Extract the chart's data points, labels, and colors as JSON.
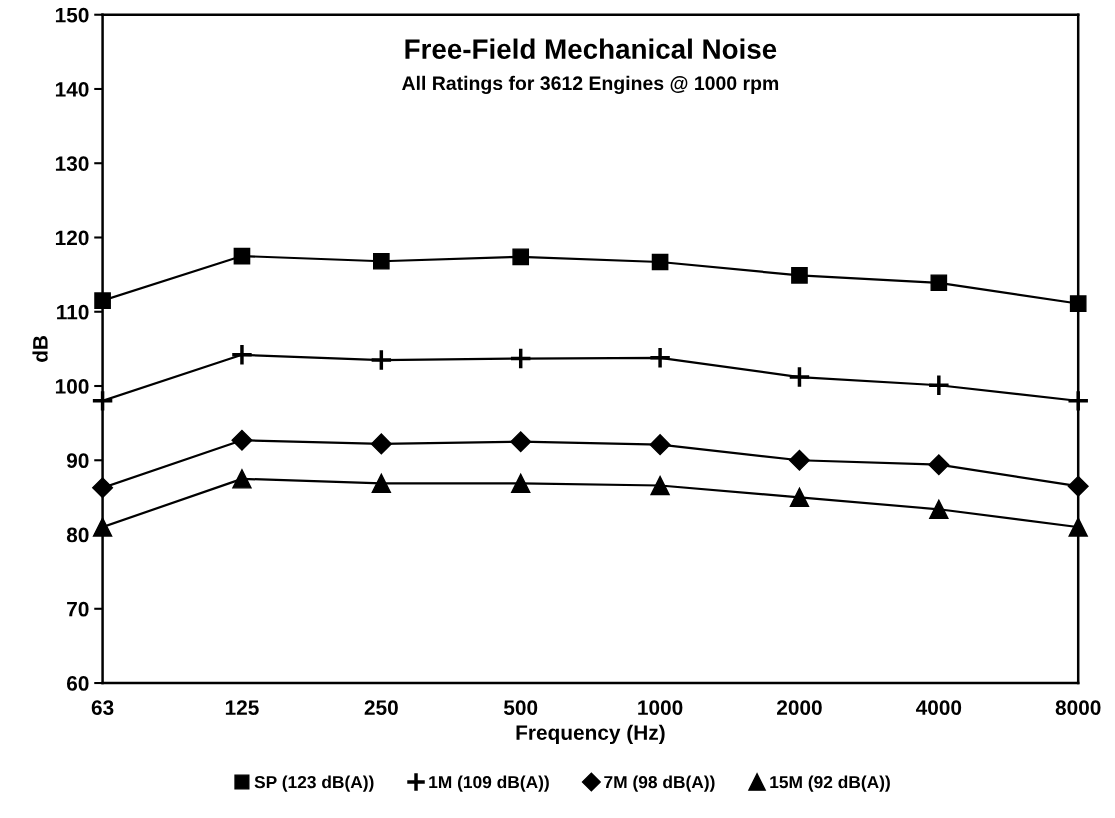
{
  "chart_data": {
    "type": "line",
    "title": "Free-Field Mechanical Noise",
    "subtitle": "All Ratings for 3612 Engines @ 1000 rpm",
    "xlabel": "Frequency (Hz)",
    "ylabel": "dB",
    "categories": [
      "63",
      "125",
      "250",
      "500",
      "1000",
      "2000",
      "4000",
      "8000"
    ],
    "series": [
      {
        "name": "SP (123 dB(A))",
        "color": "#000000",
        "marker": "square",
        "values": [
          111.5,
          117.5,
          116.8,
          117.4,
          116.7,
          114.9,
          113.9,
          111.1
        ]
      },
      {
        "name": "1M (109 dB(A))",
        "color": "#000000",
        "marker": "cross",
        "values": [
          98.0,
          104.2,
          103.5,
          103.7,
          103.8,
          101.2,
          100.1,
          98.0
        ]
      },
      {
        "name": "7M (98 dB(A))",
        "color": "#000000",
        "marker": "diamond",
        "values": [
          86.3,
          92.7,
          92.2,
          92.5,
          92.1,
          90.0,
          89.4,
          86.5
        ]
      },
      {
        "name": "15M (92 dB(A))",
        "color": "#000000",
        "marker": "triangle",
        "values": [
          81.0,
          87.5,
          86.9,
          86.9,
          86.6,
          85.0,
          83.4,
          81.0
        ]
      }
    ],
    "ylim": [
      60,
      150
    ],
    "yticks": [
      60,
      70,
      80,
      90,
      100,
      110,
      120,
      130,
      140,
      150
    ],
    "grid": false,
    "legend": "bottom",
    "line_style": "solid"
  }
}
